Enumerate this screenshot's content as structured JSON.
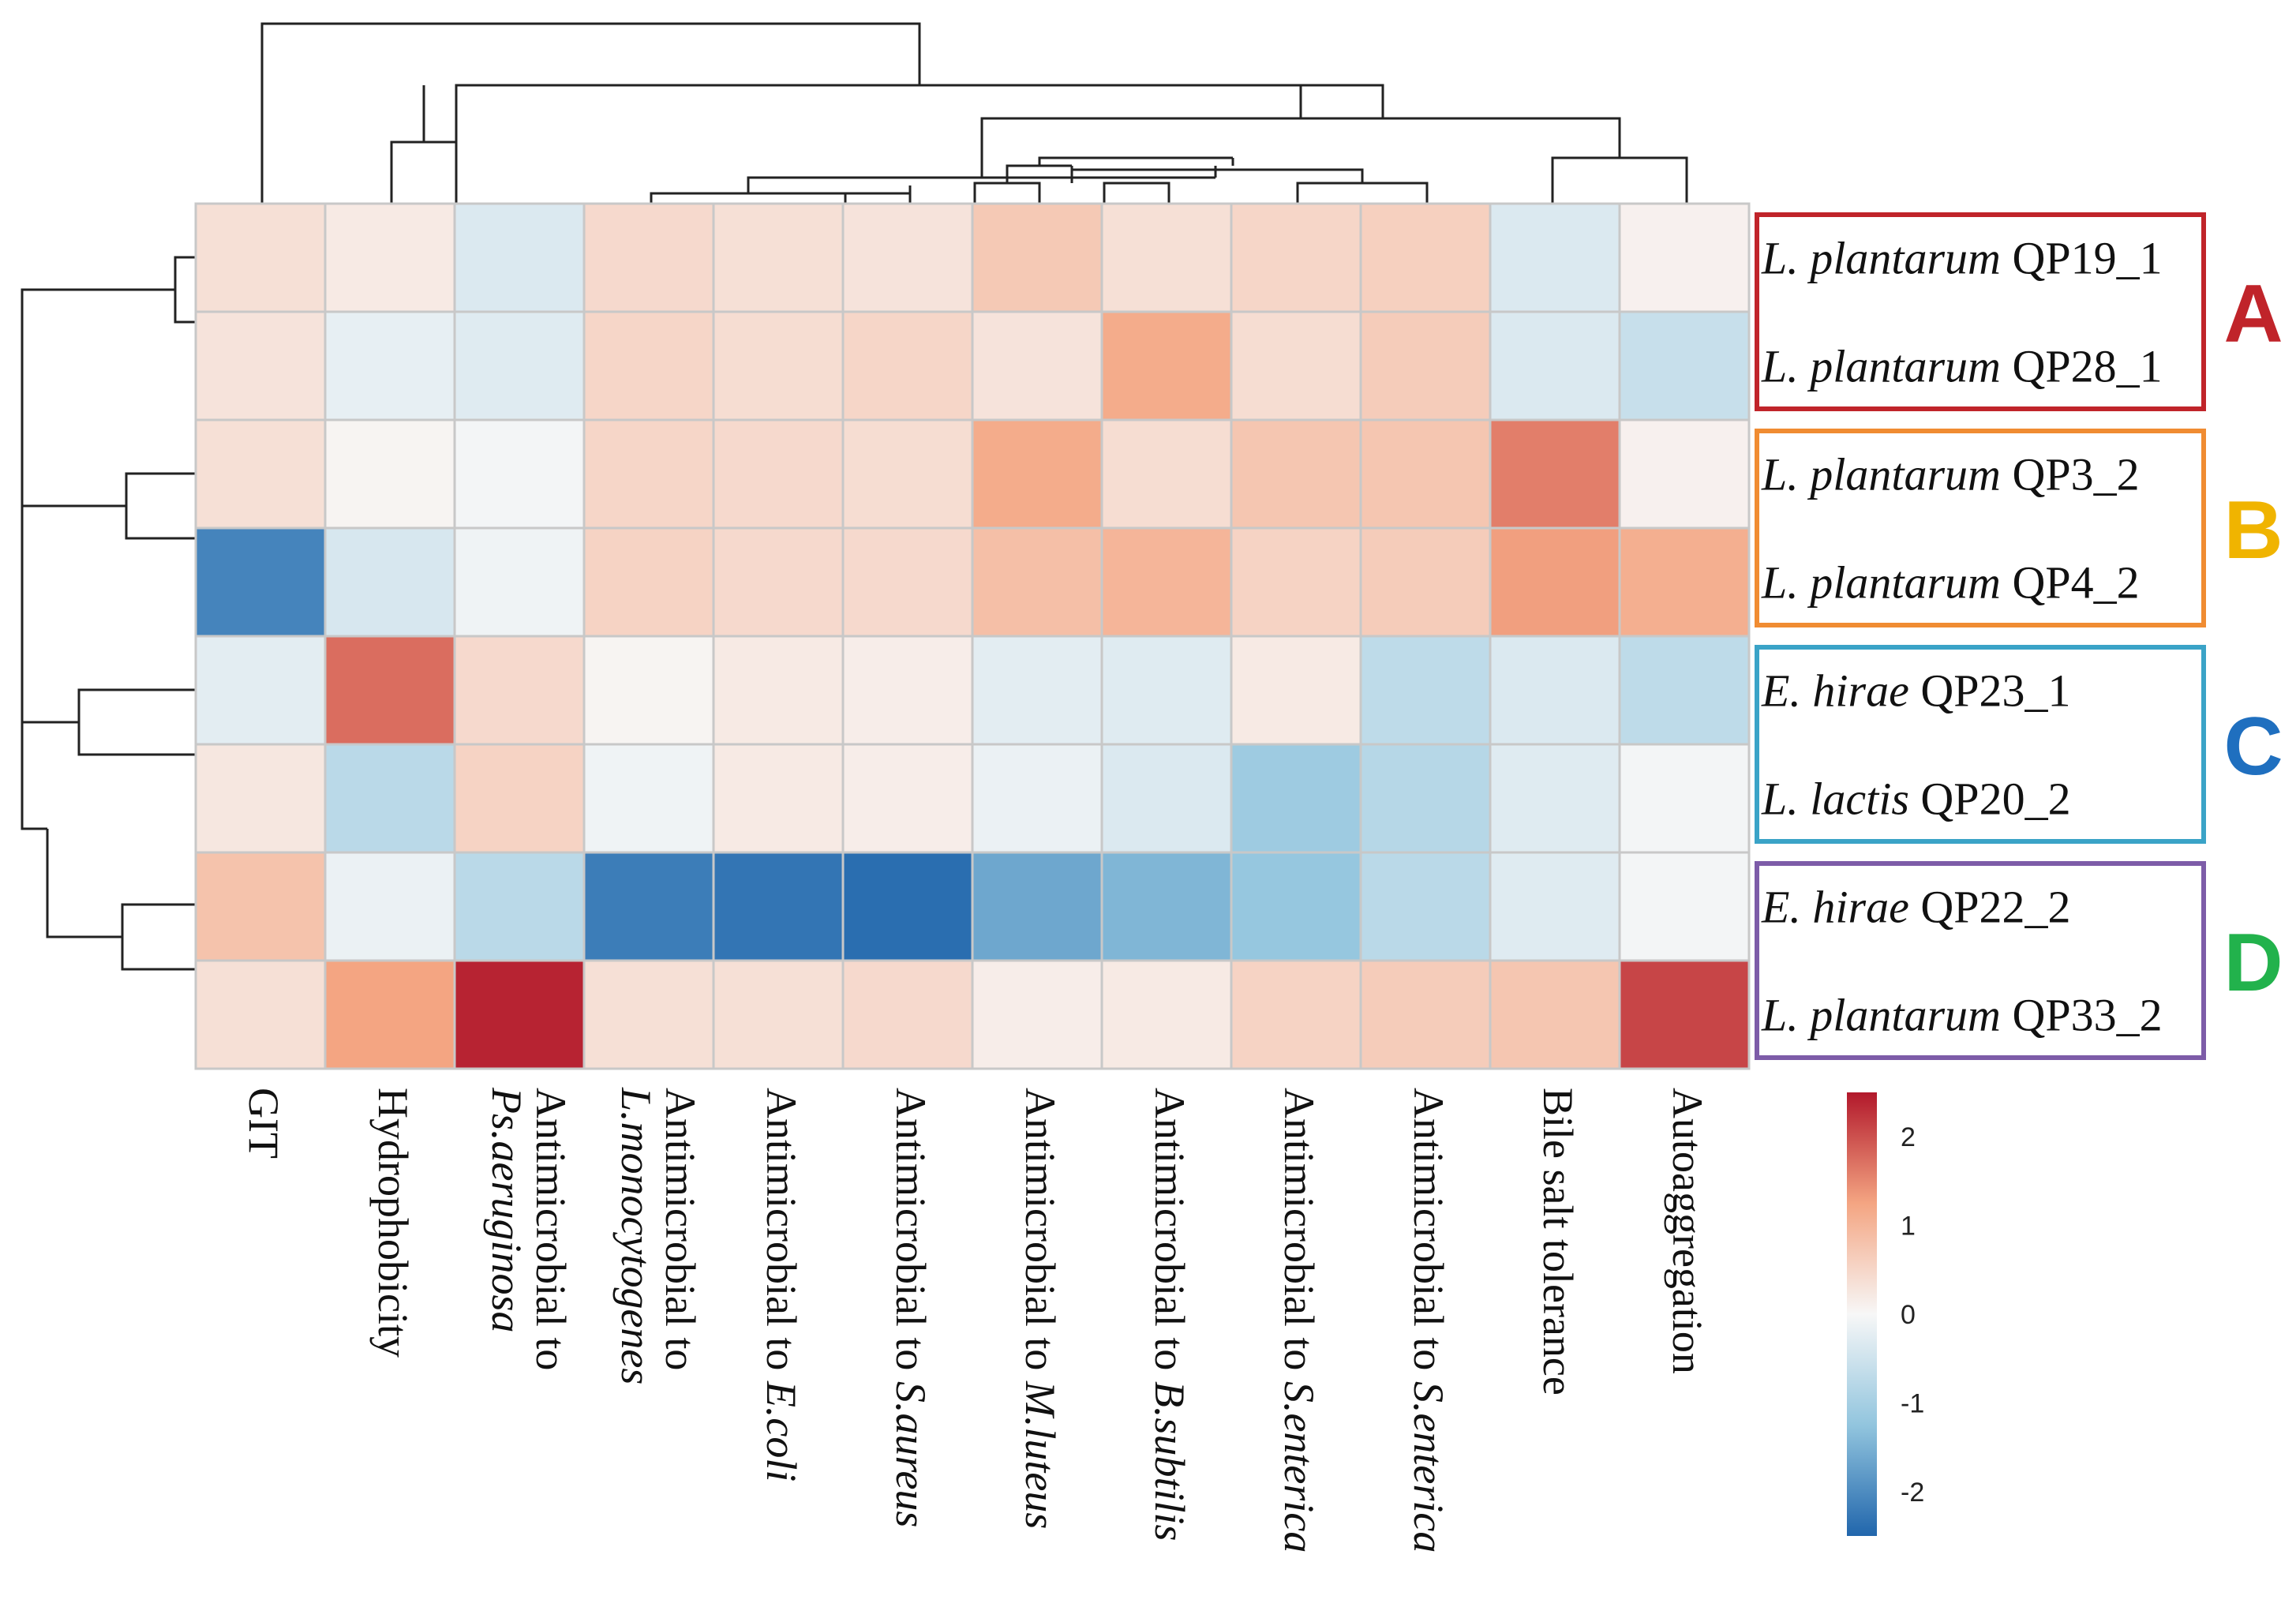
{
  "chart_data": {
    "type": "heatmap",
    "title": "",
    "row_labels": [
      {
        "genus": "L.",
        "species": "plantarum",
        "strain": "QP19_1"
      },
      {
        "genus": "L.",
        "species": "plantarum",
        "strain": "QP28_1"
      },
      {
        "genus": "L.",
        "species": "plantarum",
        "strain": "QP3_2"
      },
      {
        "genus": "L.",
        "species": "plantarum",
        "strain": "QP4_2"
      },
      {
        "genus": "E.",
        "species": "hirae",
        "strain": "QP23_1"
      },
      {
        "genus": "L.",
        "species": "lactis",
        "strain": "QP20_2"
      },
      {
        "genus": "E.",
        "species": "hirae",
        "strain": "QP22_2"
      },
      {
        "genus": "L.",
        "species": "plantarum",
        "strain": "QP33_2"
      }
    ],
    "column_labels": [
      {
        "line1": "GIT",
        "line2": "",
        "italic": ""
      },
      {
        "line1": "Hydrophobicity",
        "line2": "",
        "italic": ""
      },
      {
        "line1": "Antimicrobial to",
        "line2": "",
        "italic": "Ps.aeruginosa"
      },
      {
        "line1": "Antimicrobial to",
        "line2": "",
        "italic": "L.monocytogenes"
      },
      {
        "line1": "Antimicrobial to ",
        "line2": "",
        "italic": "E.coli"
      },
      {
        "line1": "Antimicrobial to ",
        "line2": "",
        "italic": "S.aureus"
      },
      {
        "line1": "Antimicrobial to ",
        "line2": "",
        "italic": "M.luteus"
      },
      {
        "line1": "Antimicrobial to ",
        "line2": "",
        "italic": "B.subtilis"
      },
      {
        "line1": "Antimicrobial to ",
        "line2": "",
        "italic": "S.enterica"
      },
      {
        "line1": "Antimicrobial to ",
        "line2": "",
        "italic": "S.enterica"
      },
      {
        "line1": "Bile salt tolerance",
        "line2": "",
        "italic": ""
      },
      {
        "line1": "Autoaggregation",
        "line2": "",
        "italic": ""
      }
    ],
    "values": [
      [
        0.35,
        0.2,
        -0.35,
        0.45,
        0.35,
        0.3,
        0.7,
        0.35,
        0.5,
        0.6,
        -0.35,
        0.1
      ],
      [
        0.3,
        -0.2,
        -0.3,
        0.5,
        0.4,
        0.5,
        0.3,
        1.15,
        0.4,
        0.65,
        -0.35,
        -0.6
      ],
      [
        0.35,
        0.05,
        -0.05,
        0.5,
        0.45,
        0.4,
        1.15,
        0.4,
        0.75,
        0.75,
        1.6,
        0.1
      ],
      [
        -2.1,
        -0.4,
        -0.1,
        0.55,
        0.45,
        0.45,
        0.85,
        1.0,
        0.55,
        0.65,
        1.3,
        1.1
      ],
      [
        -0.25,
        1.75,
        0.45,
        0.05,
        0.2,
        0.15,
        -0.25,
        -0.3,
        0.2,
        -0.7,
        -0.35,
        -0.7
      ],
      [
        0.25,
        -0.75,
        0.55,
        -0.1,
        0.2,
        0.15,
        -0.15,
        -0.35,
        -1.1,
        -0.8,
        -0.3,
        -0.05
      ],
      [
        0.8,
        -0.15,
        -0.75,
        -2.2,
        -2.3,
        -2.4,
        -1.65,
        -1.45,
        -1.2,
        -0.75,
        -0.3,
        -0.05
      ],
      [
        0.35,
        1.25,
        2.4,
        0.35,
        0.35,
        0.45,
        0.15,
        0.2,
        0.55,
        0.65,
        0.75,
        2.1
      ]
    ],
    "colorscale": {
      "min": -2.5,
      "max": 2.5,
      "low": "#2166ac",
      "mid": "#f7f7f7",
      "high": "#b2182b"
    },
    "legend_ticks": [
      2,
      1,
      0,
      -1,
      -2
    ],
    "groups": [
      {
        "label": "A",
        "color": "#c0242a",
        "rows": [
          0,
          1
        ]
      },
      {
        "label": "B",
        "color": "#f0b400",
        "border": "#f08c32",
        "rows": [
          2,
          3
        ]
      },
      {
        "label": "C",
        "color": "#1f6fbf",
        "border": "#3aa3c7",
        "rows": [
          4,
          5
        ]
      },
      {
        "label": "D",
        "color": "#22b24c",
        "border": "#7d5ca8",
        "rows": [
          6,
          7
        ]
      }
    ],
    "row_dendrogram_order": [
      0,
      1,
      2,
      3,
      4,
      5,
      6,
      7
    ],
    "col_dendrogram_order": [
      0,
      1,
      2,
      3,
      4,
      5,
      6,
      7,
      8,
      9,
      10,
      11
    ]
  }
}
